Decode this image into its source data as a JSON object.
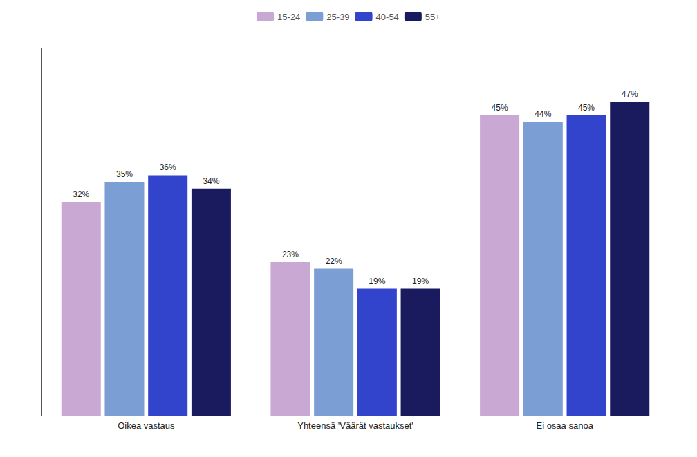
{
  "chart_data": {
    "type": "bar",
    "categories": [
      "Oikea vastaus",
      "Yhteensä 'Väärät vastaukset'",
      "Ei osaa sanoa"
    ],
    "series": [
      {
        "name": "15-24",
        "color": "#c9a8d4",
        "values": [
          32,
          23,
          45
        ],
        "value_labels": [
          "32%",
          "23%",
          "45%"
        ]
      },
      {
        "name": "25-39",
        "color": "#7b9fd4",
        "values": [
          35,
          22,
          44
        ],
        "value_labels": [
          "35%",
          "22%",
          "44%"
        ]
      },
      {
        "name": "40-54",
        "color": "#3344cc",
        "values": [
          36,
          19,
          45
        ],
        "value_labels": [
          "36%",
          "19%",
          "45%"
        ]
      },
      {
        "name": "55+",
        "color": "#1a1a5e",
        "values": [
          34,
          19,
          47
        ],
        "value_labels": [
          "34%",
          "19%",
          "47%"
        ]
      }
    ],
    "ylim": [
      0,
      55
    ],
    "grid": false,
    "legend": "top",
    "data_labels": true,
    "tick_labels": "x"
  }
}
